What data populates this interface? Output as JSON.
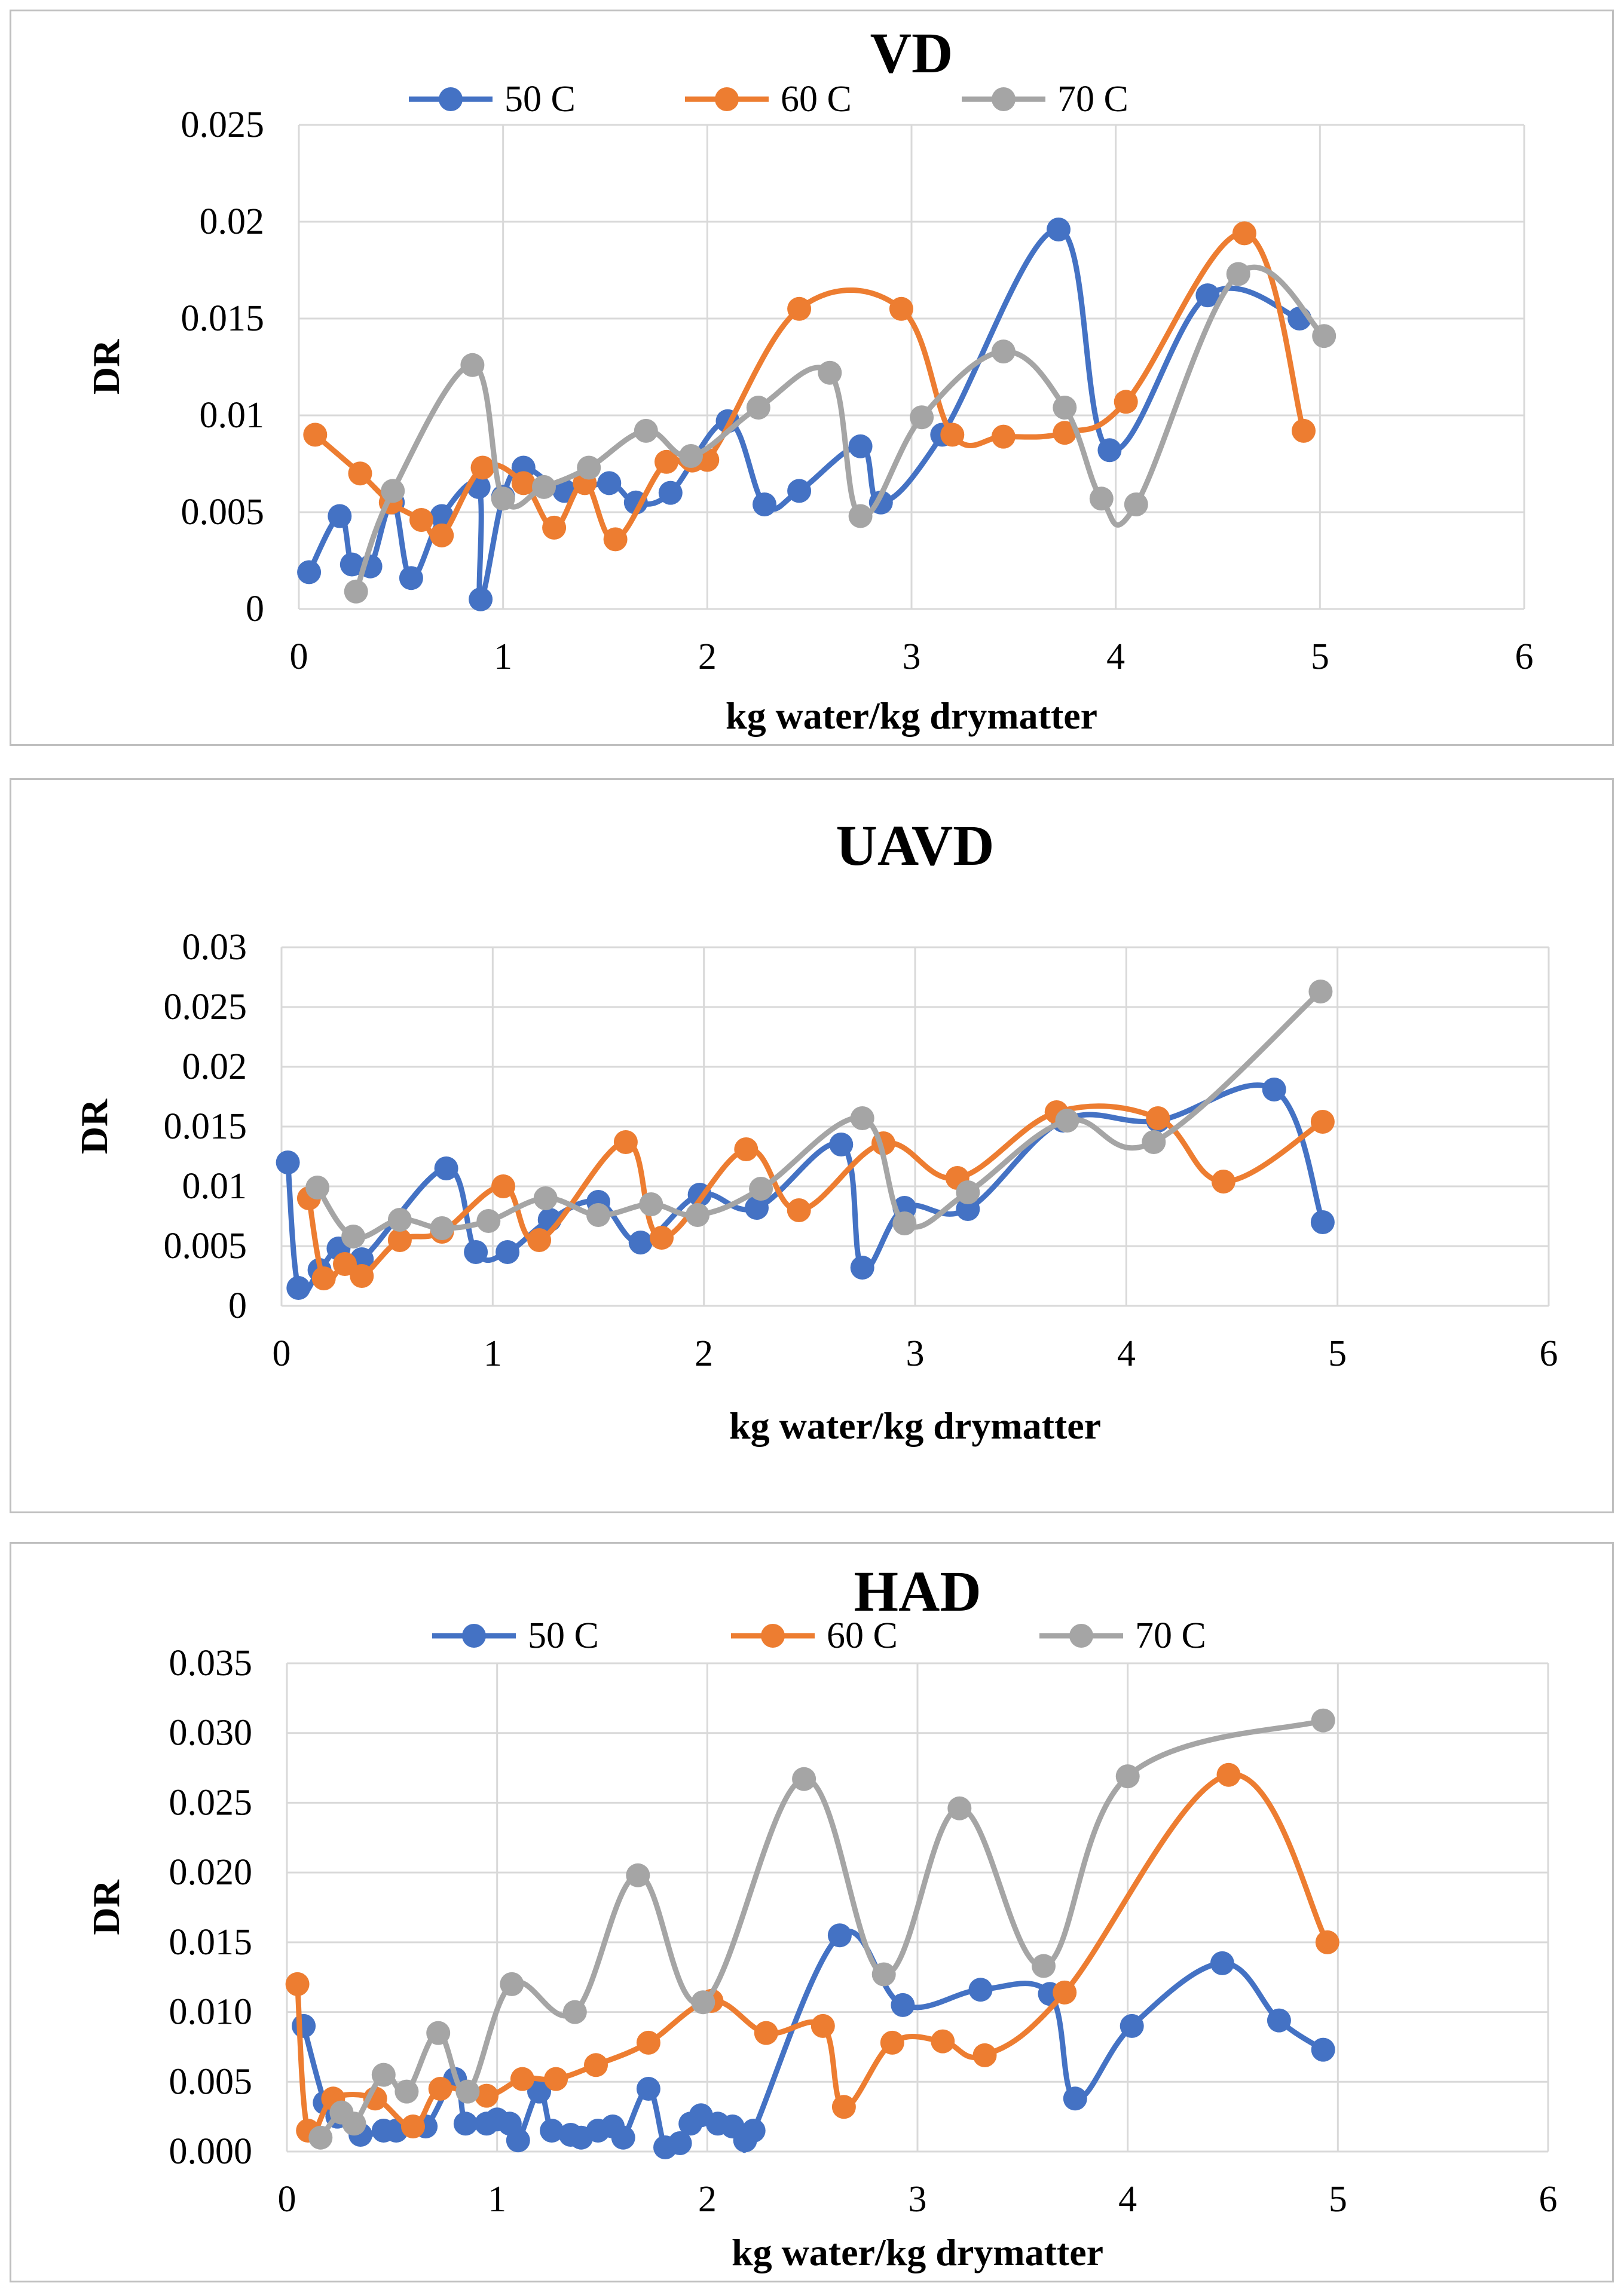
{
  "colors": {
    "s50": "#4472C4",
    "s60": "#ED7D31",
    "s70": "#A5A5A5",
    "grid": "#D9D9D9",
    "border": "#BFBFBF",
    "text": "#000000"
  },
  "legend_labels": [
    "50 C",
    "60 C",
    "70 C"
  ],
  "chart_data": [
    {
      "type": "line",
      "title": "VD",
      "xlabel": "kg water/kg drymatter",
      "ylabel": "DR",
      "xlim": [
        0,
        6
      ],
      "ylim": [
        0,
        0.025
      ],
      "xticks": [
        "0",
        "1",
        "2",
        "3",
        "4",
        "5",
        "6"
      ],
      "yticks": [
        "0",
        "0.005",
        "0.01",
        "0.015",
        "0.02",
        "0.025"
      ],
      "legend": "top",
      "series": [
        {
          "name": "50 C",
          "color": "#4472C4",
          "x": [
            0.05,
            0.2,
            0.26,
            0.35,
            0.46,
            0.55,
            0.7,
            0.88,
            0.89,
            1.0,
            1.1,
            1.3,
            1.52,
            1.65,
            1.82,
            2.1,
            2.28,
            2.45,
            2.75,
            2.85,
            3.15,
            3.72,
            3.97,
            4.45,
            4.9
          ],
          "y": [
            0.0019,
            0.0048,
            0.0023,
            0.0022,
            0.0055,
            0.0016,
            0.0048,
            0.0063,
            0.0005,
            0.0058,
            0.0073,
            0.0061,
            0.0065,
            0.0055,
            0.006,
            0.0097,
            0.0054,
            0.0061,
            0.0084,
            0.0055,
            0.009,
            0.0196,
            0.0082,
            0.0162,
            0.015
          ]
        },
        {
          "name": "60 C",
          "color": "#ED7D31",
          "x": [
            0.08,
            0.3,
            0.45,
            0.6,
            0.7,
            0.9,
            1.1,
            1.25,
            1.4,
            1.55,
            1.8,
            2.0,
            2.45,
            2.95,
            3.2,
            3.45,
            3.75,
            4.05,
            4.63,
            4.92
          ],
          "y": [
            0.009,
            0.007,
            0.0055,
            0.0046,
            0.0038,
            0.0073,
            0.0065,
            0.0042,
            0.0065,
            0.0036,
            0.0076,
            0.0077,
            0.0155,
            0.0155,
            0.009,
            0.0089,
            0.0091,
            0.0107,
            0.0194,
            0.0092
          ]
        },
        {
          "name": "70 C",
          "color": "#A5A5A5",
          "x": [
            0.28,
            0.46,
            0.85,
            1.0,
            1.2,
            1.42,
            1.7,
            1.92,
            2.25,
            2.6,
            2.75,
            3.05,
            3.45,
            3.75,
            3.93,
            4.1,
            4.6,
            5.02
          ],
          "y": [
            0.0009,
            0.0061,
            0.0126,
            0.0057,
            0.0063,
            0.0073,
            0.0092,
            0.0079,
            0.0104,
            0.0122,
            0.0048,
            0.0099,
            0.0133,
            0.0104,
            0.0057,
            0.0054,
            0.0173,
            0.0141
          ]
        }
      ]
    },
    {
      "type": "line",
      "title": "UAVD",
      "xlabel": "kg water/kg drymatter",
      "ylabel": "DR",
      "xlim": [
        0,
        6
      ],
      "ylim": [
        0,
        0.03
      ],
      "xticks": [
        "0",
        "1",
        "2",
        "3",
        "4",
        "5",
        "6"
      ],
      "yticks": [
        "0",
        "0.005",
        "0.01",
        "0.015",
        "0.02",
        "0.025",
        "0.03"
      ],
      "legend": "none",
      "series": [
        {
          "name": "50 C",
          "color": "#4472C4",
          "x": [
            0.03,
            0.08,
            0.18,
            0.27,
            0.38,
            0.78,
            0.92,
            1.07,
            1.27,
            1.5,
            1.7,
            1.98,
            2.25,
            2.65,
            2.75,
            2.95,
            3.25,
            3.7,
            4.15,
            4.7,
            4.93
          ],
          "y": [
            0.012,
            0.0015,
            0.003,
            0.0048,
            0.0039,
            0.0115,
            0.0045,
            0.0045,
            0.0072,
            0.0087,
            0.0053,
            0.0093,
            0.0082,
            0.0135,
            0.0032,
            0.0082,
            0.0081,
            0.0155,
            0.0155,
            0.0181,
            0.007
          ]
        },
        {
          "name": "60 C",
          "color": "#ED7D31",
          "x": [
            0.13,
            0.2,
            0.3,
            0.38,
            0.56,
            0.76,
            1.05,
            1.22,
            1.63,
            1.8,
            2.2,
            2.45,
            2.85,
            3.2,
            3.67,
            4.15,
            4.46,
            4.93
          ],
          "y": [
            0.009,
            0.0023,
            0.0035,
            0.0025,
            0.0055,
            0.0062,
            0.01,
            0.0055,
            0.0137,
            0.0057,
            0.0131,
            0.008,
            0.0136,
            0.0107,
            0.0162,
            0.0157,
            0.0104,
            0.0154
          ]
        },
        {
          "name": "70 C",
          "color": "#A5A5A5",
          "x": [
            0.17,
            0.34,
            0.56,
            0.76,
            0.98,
            1.25,
            1.5,
            1.75,
            1.97,
            2.27,
            2.75,
            2.95,
            3.25,
            3.72,
            4.13,
            4.92
          ],
          "y": [
            0.0099,
            0.0058,
            0.0072,
            0.0065,
            0.0071,
            0.009,
            0.0076,
            0.0085,
            0.0076,
            0.0098,
            0.0157,
            0.0069,
            0.0095,
            0.0155,
            0.0137,
            0.0263
          ]
        }
      ]
    },
    {
      "type": "line",
      "title": "HAD",
      "xlabel": "kg water/kg drymatter",
      "ylabel": "DR",
      "xlim": [
        0,
        6
      ],
      "ylim": [
        0,
        0.035
      ],
      "xticks": [
        "0",
        "1",
        "2",
        "3",
        "4",
        "5",
        "6"
      ],
      "yticks": [
        "0.000",
        "0.005",
        "0.010",
        "0.015",
        "0.020",
        "0.025",
        "0.030",
        "0.035"
      ],
      "legend": "top",
      "series": [
        {
          "name": "50 C",
          "color": "#4472C4",
          "x": [
            0.08,
            0.18,
            0.24,
            0.35,
            0.46,
            0.52,
            0.66,
            0.8,
            0.85,
            0.95,
            1.0,
            1.06,
            1.1,
            1.2,
            1.26,
            1.35,
            1.4,
            1.48,
            1.55,
            1.6,
            1.72,
            1.8,
            1.87,
            1.92,
            1.97,
            2.05,
            2.12,
            2.18,
            2.22,
            2.63,
            2.93,
            3.3,
            3.63,
            3.75,
            4.02,
            4.45,
            4.72,
            4.93
          ],
          "y": [
            0.009,
            0.0035,
            0.0025,
            0.0012,
            0.0015,
            0.0015,
            0.0018,
            0.0052,
            0.002,
            0.002,
            0.0023,
            0.002,
            0.0008,
            0.0043,
            0.0015,
            0.0012,
            0.001,
            0.0015,
            0.0018,
            0.001,
            0.0045,
            0.0003,
            0.0006,
            0.002,
            0.0026,
            0.002,
            0.0018,
            0.0008,
            0.0015,
            0.0155,
            0.0105,
            0.0116,
            0.0113,
            0.0038,
            0.009,
            0.0135,
            0.0094,
            0.0073
          ]
        },
        {
          "name": "60 C",
          "color": "#ED7D31",
          "x": [
            0.05,
            0.1,
            0.22,
            0.42,
            0.6,
            0.73,
            0.95,
            1.12,
            1.28,
            1.47,
            1.72,
            2.02,
            2.28,
            2.55,
            2.65,
            2.88,
            3.12,
            3.32,
            3.7,
            4.48,
            4.95
          ],
          "y": [
            0.012,
            0.0015,
            0.0038,
            0.0038,
            0.0018,
            0.0045,
            0.004,
            0.0052,
            0.0052,
            0.0062,
            0.0078,
            0.0108,
            0.0085,
            0.009,
            0.0032,
            0.0078,
            0.0079,
            0.0069,
            0.0114,
            0.027,
            0.015
          ]
        },
        {
          "name": "70 C",
          "color": "#A5A5A5",
          "x": [
            0.16,
            0.26,
            0.32,
            0.46,
            0.57,
            0.72,
            0.86,
            1.07,
            1.37,
            1.67,
            1.98,
            2.46,
            2.84,
            3.2,
            3.6,
            4.0,
            4.93
          ],
          "y": [
            0.001,
            0.0028,
            0.002,
            0.0055,
            0.0043,
            0.0085,
            0.0043,
            0.012,
            0.01,
            0.0198,
            0.0107,
            0.0267,
            0.0127,
            0.0246,
            0.0133,
            0.0269,
            0.0309
          ]
        }
      ]
    }
  ]
}
